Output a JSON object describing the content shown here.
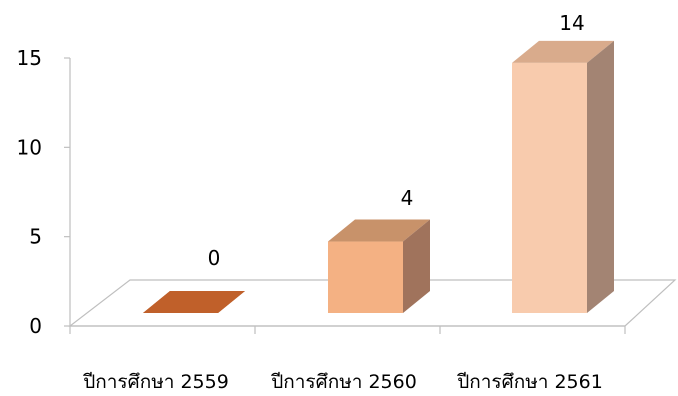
{
  "chart_data": {
    "type": "bar",
    "categories": [
      "ปีการศึกษา 2559",
      "ปีการศึกษา 2560",
      "ปีการศึกษา 2561"
    ],
    "values": [
      0,
      4,
      14
    ],
    "data_labels": [
      "0",
      "4",
      "14"
    ],
    "y_ticks": [
      "0",
      "5",
      "10",
      "15"
    ],
    "ylim": [
      0,
      15
    ],
    "title": "",
    "xlabel": "",
    "ylabel": "",
    "grid": false,
    "legend": "none",
    "style": "3d-column",
    "colors": {
      "front": [
        "#c0602a",
        "#f4b183",
        "#f8cbad"
      ],
      "top": [
        "#b0561f",
        "#c8926a",
        "#d9ab8c"
      ],
      "side": [
        "#9a4a1c",
        "#a0735c",
        "#a38473"
      ]
    }
  }
}
